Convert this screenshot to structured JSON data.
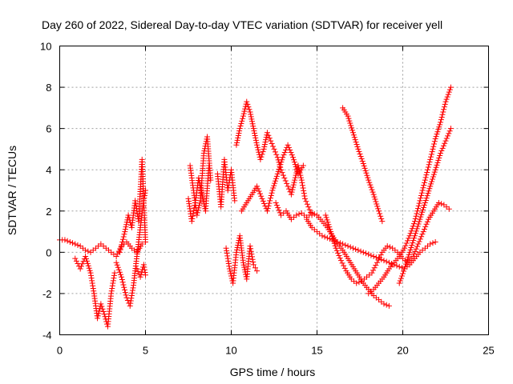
{
  "chart_data": {
    "type": "scatter",
    "title": "Day 260 of 2022, Sidereal Day-to-day VTEC variation (SDTVAR) for receiver yell",
    "xlabel": "GPS time / hours",
    "ylabel": "SDTVAR / TECUs",
    "xlim": [
      0,
      25
    ],
    "ylim": [
      -4,
      10
    ],
    "xticks": [
      0,
      5,
      10,
      15,
      20,
      25
    ],
    "xtick_labels": [
      "0",
      "5",
      "10",
      "15",
      "20",
      "25"
    ],
    "yticks": [
      -4,
      -2,
      0,
      2,
      4,
      6,
      8,
      10
    ],
    "ytick_labels": [
      "-4",
      "-2",
      "0",
      "2",
      "4",
      "6",
      "8",
      "10"
    ],
    "grid": true,
    "marker": "+",
    "color": "#ff0000",
    "series": [
      {
        "name": "s1",
        "x": [
          0.0,
          0.3,
          0.6,
          0.9,
          1.2,
          1.5,
          1.8,
          2.1,
          2.4,
          2.7,
          3.0,
          3.3,
          3.6,
          3.9,
          4.2,
          4.5,
          4.8,
          5.0
        ],
        "y": [
          0.6,
          0.6,
          0.5,
          0.4,
          0.3,
          0.1,
          0.0,
          0.2,
          0.4,
          0.2,
          0.0,
          -0.2,
          0.3,
          0.5,
          0.2,
          0.0,
          0.4,
          0.5
        ]
      },
      {
        "name": "s2",
        "x": [
          0.9,
          1.2,
          1.5,
          1.8,
          2.0,
          2.2,
          2.4,
          2.6,
          2.8,
          3.0,
          3.2
        ],
        "y": [
          -0.3,
          -0.8,
          -0.2,
          -1.0,
          -2.0,
          -3.2,
          -2.5,
          -3.0,
          -3.6,
          -2.0,
          -1.0
        ]
      },
      {
        "name": "s3",
        "x": [
          3.3,
          3.6,
          3.9,
          4.1,
          4.3,
          4.5,
          4.7,
          4.9,
          5.0
        ],
        "y": [
          -0.5,
          -1.2,
          -2.2,
          -2.6,
          -1.6,
          -0.2,
          1.2,
          2.5,
          3.0
        ]
      },
      {
        "name": "s4",
        "x": [
          3.5,
          3.8,
          4.0,
          4.2,
          4.4,
          4.6,
          4.8,
          5.0
        ],
        "y": [
          0.0,
          1.0,
          1.8,
          1.2,
          2.5,
          1.5,
          4.5,
          0.5
        ]
      },
      {
        "name": "s5",
        "x": [
          4.5,
          4.7,
          4.9,
          5.0
        ],
        "y": [
          -0.8,
          -1.2,
          -0.6,
          -1.1
        ]
      },
      {
        "name": "s6",
        "x": [
          7.6,
          7.8,
          8.0,
          8.2,
          8.4,
          8.6,
          8.8
        ],
        "y": [
          4.2,
          3.0,
          1.8,
          2.5,
          4.8,
          5.6,
          3.5
        ]
      },
      {
        "name": "s7",
        "x": [
          7.5,
          7.7,
          7.9,
          8.1,
          8.3,
          8.5,
          8.7
        ],
        "y": [
          2.6,
          1.5,
          2.4,
          3.6,
          2.8,
          2.0,
          4.2
        ]
      },
      {
        "name": "s8",
        "x": [
          9.2,
          9.4,
          9.6,
          9.8,
          10.0,
          10.2
        ],
        "y": [
          3.8,
          2.2,
          4.5,
          3.0,
          4.0,
          2.5
        ]
      },
      {
        "name": "s9",
        "x": [
          9.7,
          9.9,
          10.1,
          10.3,
          10.5,
          10.7,
          10.9,
          11.1,
          11.3,
          11.5
        ],
        "y": [
          0.2,
          -0.8,
          -1.5,
          0.0,
          0.8,
          -0.5,
          -1.3,
          0.3,
          -0.6,
          -0.9
        ]
      },
      {
        "name": "s10",
        "x": [
          10.3,
          10.5,
          10.7,
          10.9,
          11.1,
          11.3,
          11.5,
          11.7,
          11.9,
          12.1,
          12.3,
          12.5,
          12.7,
          12.9,
          13.1,
          13.3,
          13.5,
          13.7,
          13.9,
          14.1,
          14.3,
          14.5,
          14.7
        ],
        "y": [
          5.2,
          6.0,
          6.6,
          7.3,
          6.8,
          6.0,
          5.2,
          4.5,
          5.0,
          5.8,
          5.4,
          5.0,
          4.6,
          4.0,
          3.6,
          3.2,
          2.8,
          3.5,
          4.2,
          3.5,
          2.6,
          2.2,
          1.8
        ]
      },
      {
        "name": "s11",
        "x": [
          10.6,
          10.9,
          11.2,
          11.5,
          11.8,
          12.1,
          12.4,
          12.7,
          13.0,
          13.3,
          13.6,
          13.9,
          14.2
        ],
        "y": [
          2.0,
          2.4,
          2.8,
          3.2,
          2.6,
          2.0,
          3.0,
          3.8,
          4.6,
          5.2,
          4.6,
          3.8,
          4.2
        ]
      },
      {
        "name": "s12",
        "x": [
          12.6,
          12.9,
          13.2,
          13.5,
          13.8,
          14.1,
          14.4,
          14.7,
          15.0,
          15.3,
          15.6,
          15.9,
          16.2,
          16.5,
          16.8,
          17.1,
          17.4,
          17.7,
          18.0,
          18.3,
          18.6,
          18.9,
          19.2
        ],
        "y": [
          2.4,
          1.8,
          2.0,
          1.6,
          1.8,
          1.9,
          1.7,
          1.9,
          1.8,
          1.5,
          1.2,
          0.8,
          0.4,
          0.1,
          -0.3,
          -0.7,
          -1.1,
          -1.5,
          -1.8,
          -2.1,
          -2.3,
          -2.5,
          -2.6
        ]
      },
      {
        "name": "s13",
        "x": [
          14.4,
          14.7,
          15.0,
          15.3,
          15.6,
          15.9,
          16.2,
          16.5,
          16.8,
          17.1,
          17.4,
          17.7,
          18.0,
          18.3,
          18.6,
          18.9,
          19.2,
          19.5,
          19.8,
          20.1,
          20.4,
          20.7,
          21.0,
          21.3,
          21.6,
          21.9
        ],
        "y": [
          1.6,
          1.2,
          1.0,
          0.8,
          0.7,
          0.6,
          0.5,
          0.4,
          0.3,
          0.2,
          0.1,
          0.0,
          -0.1,
          -0.2,
          -0.3,
          -0.4,
          -0.5,
          -0.6,
          -0.7,
          -0.8,
          -0.6,
          -0.3,
          0.0,
          0.2,
          0.4,
          0.5
        ]
      },
      {
        "name": "s14",
        "x": [
          15.5,
          15.8,
          16.1,
          16.4,
          16.7,
          17.0,
          17.3,
          17.6,
          17.9,
          18.2,
          18.5,
          18.8,
          19.1,
          19.4,
          19.7,
          20.0,
          20.3,
          20.6,
          20.9,
          21.2,
          21.5,
          21.8,
          22.1,
          22.4,
          22.7
        ],
        "y": [
          1.8,
          1.0,
          0.2,
          -0.4,
          -0.9,
          -1.3,
          -1.5,
          -1.4,
          -1.2,
          -1.0,
          -0.5,
          0.0,
          0.3,
          0.2,
          0.0,
          -0.3,
          -0.5,
          -0.2,
          0.4,
          1.0,
          1.6,
          2.0,
          2.4,
          2.3,
          2.1
        ]
      },
      {
        "name": "s15",
        "x": [
          16.5,
          16.8,
          17.1,
          17.4,
          17.7,
          18.0,
          18.3,
          18.6,
          18.8
        ],
        "y": [
          7.0,
          6.6,
          5.8,
          5.0,
          4.3,
          3.5,
          2.8,
          2.0,
          1.5
        ]
      },
      {
        "name": "s16",
        "x": [
          18.0,
          18.3,
          18.6,
          18.9,
          19.2,
          19.5,
          19.8,
          20.1,
          20.4,
          20.7,
          21.0,
          21.3,
          21.6,
          21.9,
          22.2,
          22.5,
          22.8
        ],
        "y": [
          -2.0,
          -1.8,
          -1.5,
          -1.2,
          -0.8,
          -0.5,
          -0.2,
          0.2,
          0.8,
          1.5,
          2.5,
          3.5,
          4.5,
          5.5,
          6.3,
          7.3,
          8.0
        ]
      },
      {
        "name": "s17",
        "x": [
          19.8,
          20.1,
          20.4,
          20.7,
          21.0,
          21.3,
          21.6,
          21.9,
          22.2,
          22.5,
          22.8
        ],
        "y": [
          -1.5,
          -0.8,
          0.0,
          0.8,
          1.6,
          2.4,
          3.2,
          4.0,
          4.8,
          5.4,
          6.0
        ]
      }
    ]
  }
}
